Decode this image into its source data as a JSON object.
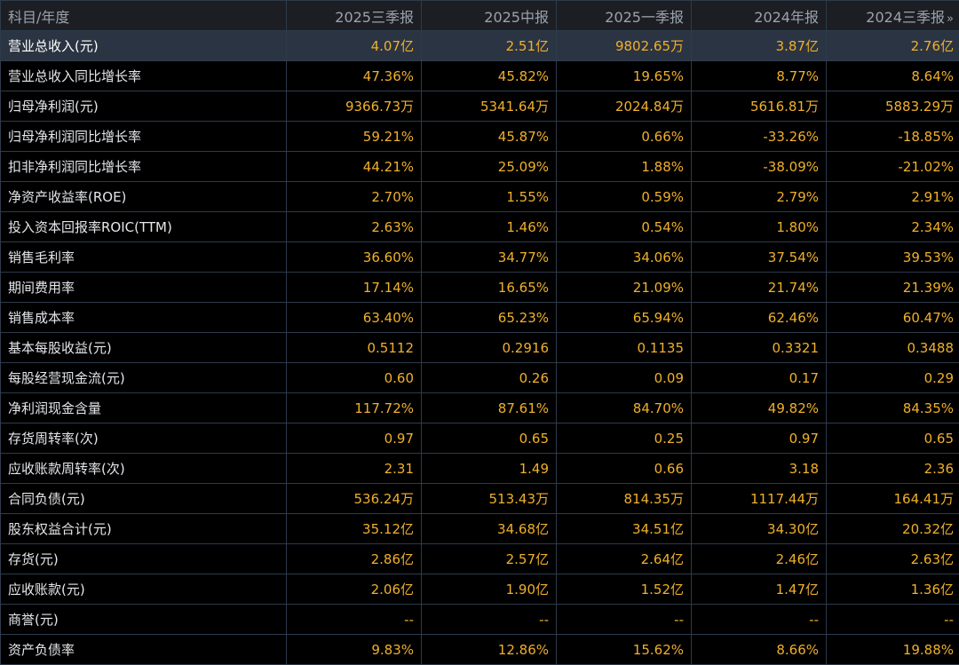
{
  "header": {
    "label": "科目/年度",
    "periods": [
      "2025三季报",
      "2025中报",
      "2025一季报",
      "2024年报",
      "2024三季报"
    ],
    "more_icon": "»"
  },
  "rows": [
    {
      "label": "营业总收入(元)",
      "values": [
        "4.07亿",
        "2.51亿",
        "9802.65万",
        "3.87亿",
        "2.76亿"
      ]
    },
    {
      "label": "营业总收入同比增长率",
      "values": [
        "47.36%",
        "45.82%",
        "19.65%",
        "8.77%",
        "8.64%"
      ]
    },
    {
      "label": "归母净利润(元)",
      "values": [
        "9366.73万",
        "5341.64万",
        "2024.84万",
        "5616.81万",
        "5883.29万"
      ]
    },
    {
      "label": "归母净利润同比增长率",
      "values": [
        "59.21%",
        "45.87%",
        "0.66%",
        "-33.26%",
        "-18.85%"
      ]
    },
    {
      "label": "扣非净利润同比增长率",
      "values": [
        "44.21%",
        "25.09%",
        "1.88%",
        "-38.09%",
        "-21.02%"
      ]
    },
    {
      "label": "净资产收益率(ROE)",
      "values": [
        "2.70%",
        "1.55%",
        "0.59%",
        "2.79%",
        "2.91%"
      ]
    },
    {
      "label": "投入资本回报率ROIC(TTM)",
      "values": [
        "2.63%",
        "1.46%",
        "0.54%",
        "1.80%",
        "2.34%"
      ]
    },
    {
      "label": "销售毛利率",
      "values": [
        "36.60%",
        "34.77%",
        "34.06%",
        "37.54%",
        "39.53%"
      ]
    },
    {
      "label": "期间费用率",
      "values": [
        "17.14%",
        "16.65%",
        "21.09%",
        "21.74%",
        "21.39%"
      ]
    },
    {
      "label": "销售成本率",
      "values": [
        "63.40%",
        "65.23%",
        "65.94%",
        "62.46%",
        "60.47%"
      ]
    },
    {
      "label": "基本每股收益(元)",
      "values": [
        "0.5112",
        "0.2916",
        "0.1135",
        "0.3321",
        "0.3488"
      ]
    },
    {
      "label": "每股经营现金流(元)",
      "values": [
        "0.60",
        "0.26",
        "0.09",
        "0.17",
        "0.29"
      ]
    },
    {
      "label": "净利润现金含量",
      "values": [
        "117.72%",
        "87.61%",
        "84.70%",
        "49.82%",
        "84.35%"
      ]
    },
    {
      "label": "存货周转率(次)",
      "values": [
        "0.97",
        "0.65",
        "0.25",
        "0.97",
        "0.65"
      ]
    },
    {
      "label": "应收账款周转率(次)",
      "values": [
        "2.31",
        "1.49",
        "0.66",
        "3.18",
        "2.36"
      ]
    },
    {
      "label": "合同负债(元)",
      "values": [
        "536.24万",
        "513.43万",
        "814.35万",
        "1117.44万",
        "164.41万"
      ]
    },
    {
      "label": "股东权益合计(元)",
      "values": [
        "35.12亿",
        "34.68亿",
        "34.51亿",
        "34.30亿",
        "20.32亿"
      ]
    },
    {
      "label": "存货(元)",
      "values": [
        "2.86亿",
        "2.57亿",
        "2.64亿",
        "2.46亿",
        "2.63亿"
      ]
    },
    {
      "label": "应收账款(元)",
      "values": [
        "2.06亿",
        "1.90亿",
        "1.52亿",
        "1.47亿",
        "1.36亿"
      ]
    },
    {
      "label": "商誉(元)",
      "values": [
        "--",
        "--",
        "--",
        "--",
        "--"
      ]
    },
    {
      "label": "资产负债率",
      "values": [
        "9.83%",
        "12.86%",
        "15.62%",
        "8.66%",
        "19.88%"
      ]
    }
  ],
  "selected_row": 0,
  "colors": {
    "background": "#000000",
    "header_bg": "#1c1e24",
    "selected_row_bg": "#2b3442",
    "value_text": "#f0b02b",
    "label_text": "#e4e6ea",
    "grid_line": "#2d3b4a"
  }
}
